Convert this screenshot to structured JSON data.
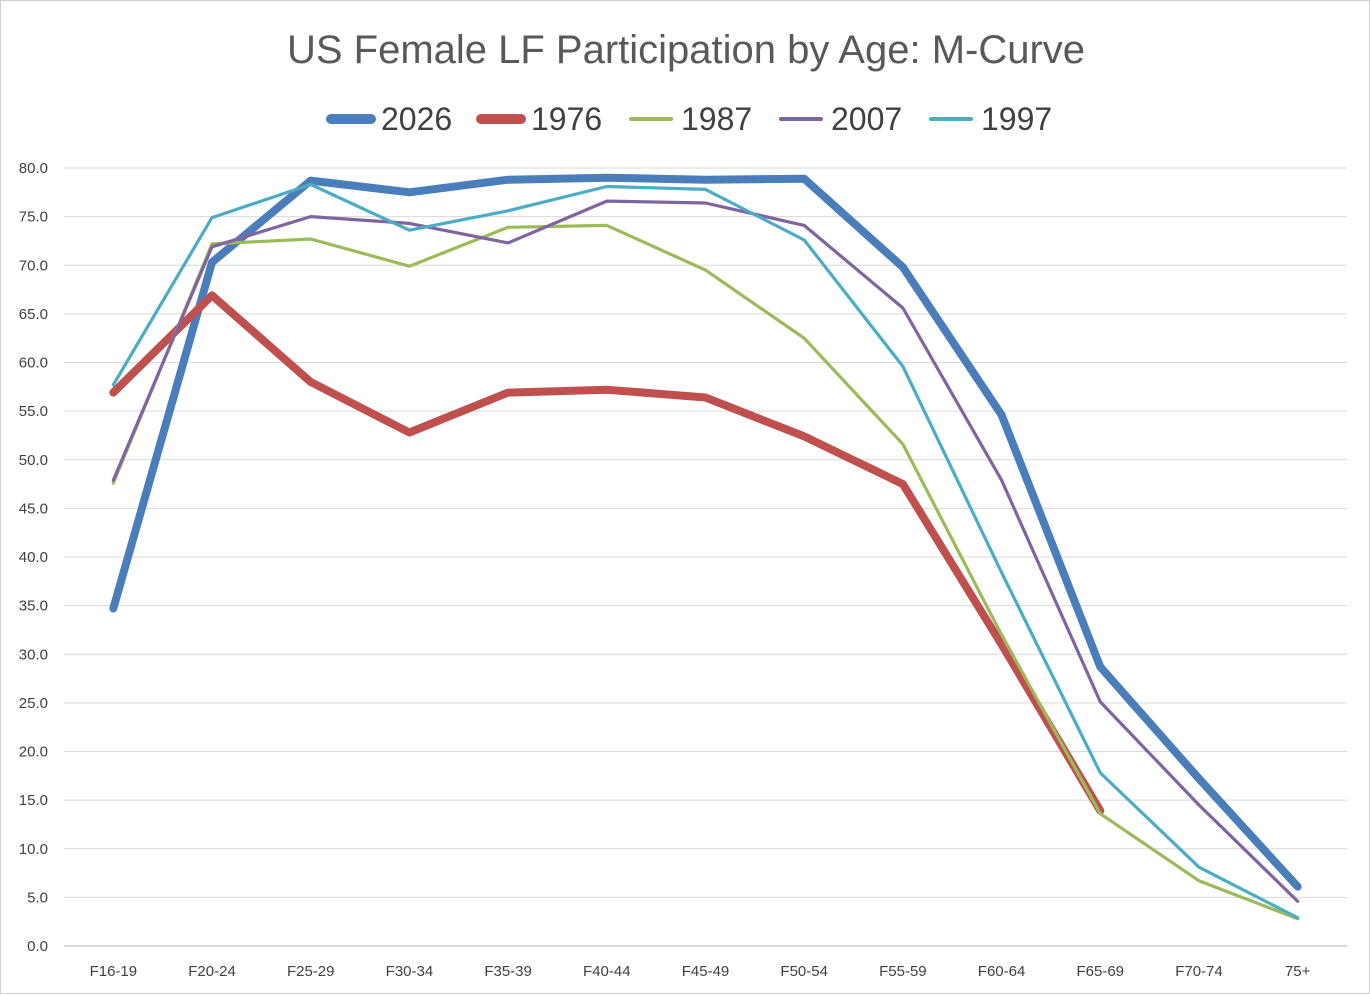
{
  "chart_data": {
    "type": "line",
    "title": "US Female LF Participation by Age: M-Curve",
    "xlabel": "",
    "ylabel": "",
    "ylim": [
      0,
      80
    ],
    "y_tick_step": 5,
    "y_tick_labels": [
      "0.0",
      "5.0",
      "10.0",
      "15.0",
      "20.0",
      "25.0",
      "30.0",
      "35.0",
      "40.0",
      "45.0",
      "50.0",
      "55.0",
      "60.0",
      "65.0",
      "70.0",
      "75.0",
      "80.0"
    ],
    "grid": true,
    "legend_position": "top",
    "categories": [
      "F16-19",
      "F20-24",
      "F25-29",
      "F30-34",
      "F35-39",
      "F40-44",
      "F45-49",
      "F50-54",
      "F55-59",
      "F60-64",
      "F65-69",
      "F70-74",
      "75+"
    ],
    "series": [
      {
        "name": "2026",
        "color": "#4a7ebb",
        "weight": "heavy",
        "values": [
          34.7,
          70.3,
          78.7,
          77.5,
          78.8,
          79.0,
          78.8,
          78.9,
          69.8,
          54.6,
          28.7,
          17.2,
          6.1
        ]
      },
      {
        "name": "1976",
        "color": "#c0504d",
        "weight": "heavy",
        "values": [
          56.9,
          66.9,
          58.0,
          52.8,
          56.9,
          57.2,
          56.4,
          52.4,
          47.5,
          31.0,
          13.9,
          null,
          null
        ]
      },
      {
        "name": "1987",
        "color": "#9bbb59",
        "weight": "thin",
        "values": [
          47.6,
          72.2,
          72.7,
          69.9,
          73.9,
          74.1,
          69.5,
          62.5,
          51.6,
          32.0,
          13.6,
          6.7,
          2.8
        ]
      },
      {
        "name": "2007",
        "color": "#8064a2",
        "weight": "thin",
        "values": [
          47.9,
          71.9,
          75.0,
          74.3,
          72.3,
          76.6,
          76.4,
          74.1,
          65.6,
          47.9,
          25.1,
          14.5,
          4.6
        ]
      },
      {
        "name": "1997",
        "color": "#4bacc6",
        "weight": "thin",
        "values": [
          57.7,
          74.9,
          78.3,
          73.6,
          75.6,
          78.1,
          77.8,
          72.6,
          59.6,
          38.4,
          17.8,
          8.1,
          2.9
        ]
      }
    ]
  }
}
